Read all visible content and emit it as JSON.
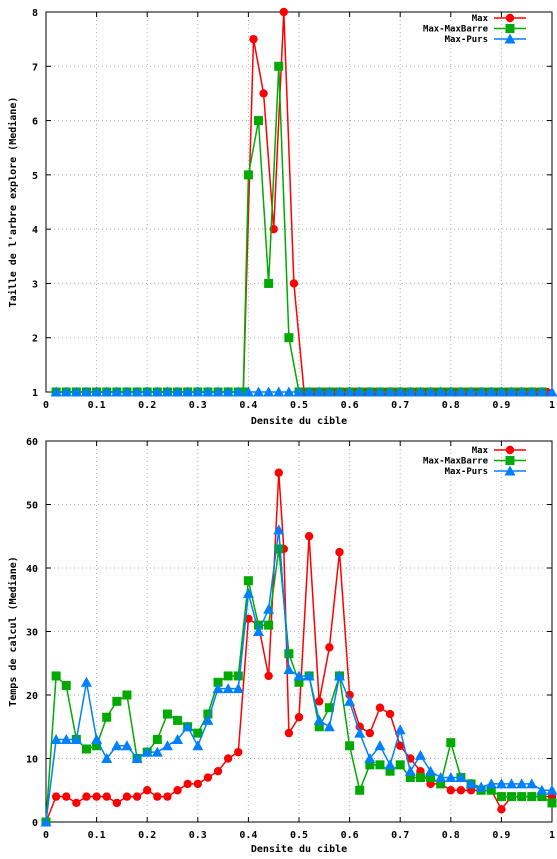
{
  "chart_data": [
    {
      "type": "line",
      "title": "",
      "xlabel": "Densite du cible",
      "ylabel": "Taille de l'arbre explore (Mediane)",
      "xlim": [
        0,
        1
      ],
      "ylim": [
        1,
        8
      ],
      "xticks": [
        "0",
        "0.1",
        "0.2",
        "0.3",
        "0.4",
        "0.5",
        "0.6",
        "0.7",
        "0.8",
        "0.9",
        "1"
      ],
      "yticks": [
        "1",
        "2",
        "3",
        "4",
        "5",
        "6",
        "7",
        "8"
      ],
      "grid": true,
      "legend_position": "top-right",
      "series": [
        {
          "name": "Max",
          "color": "#ff0000",
          "marker": "circle",
          "x": [
            0.02,
            0.04,
            0.06,
            0.08,
            0.1,
            0.12,
            0.14,
            0.16,
            0.18,
            0.2,
            0.22,
            0.24,
            0.26,
            0.28,
            0.3,
            0.32,
            0.34,
            0.36,
            0.38,
            0.39,
            0.41,
            0.43,
            0.45,
            0.47,
            0.49,
            0.51,
            0.53,
            0.55,
            0.57,
            0.59,
            0.61,
            0.63,
            0.65,
            0.67,
            0.69,
            0.71,
            0.73,
            0.75,
            0.77,
            0.79,
            0.81,
            0.83,
            0.85,
            0.87,
            0.89,
            0.91,
            0.93,
            0.95,
            0.97,
            0.99
          ],
          "y": [
            1,
            1,
            1,
            1,
            1,
            1,
            1,
            1,
            1,
            1,
            1,
            1,
            1,
            1,
            1,
            1,
            1,
            1,
            1,
            1,
            7.5,
            6.5,
            4,
            8,
            3,
            1,
            1,
            1,
            1,
            1,
            1,
            1,
            1,
            1,
            1,
            1,
            1,
            1,
            1,
            1,
            1,
            1,
            1,
            1,
            1,
            1,
            1,
            1,
            1,
            1
          ]
        },
        {
          "name": "Max-MaxBarre",
          "color": "#00aa00",
          "marker": "square",
          "x": [
            0.02,
            0.04,
            0.06,
            0.08,
            0.1,
            0.12,
            0.14,
            0.16,
            0.18,
            0.2,
            0.22,
            0.24,
            0.26,
            0.28,
            0.3,
            0.32,
            0.34,
            0.36,
            0.38,
            0.39,
            0.4,
            0.42,
            0.44,
            0.46,
            0.48,
            0.5,
            0.52,
            0.54,
            0.56,
            0.58,
            0.6,
            0.62,
            0.64,
            0.66,
            0.68,
            0.7,
            0.72,
            0.74,
            0.76,
            0.78,
            0.8,
            0.82,
            0.84,
            0.86,
            0.88,
            0.9,
            0.92,
            0.94,
            0.96,
            0.98
          ],
          "y": [
            1,
            1,
            1,
            1,
            1,
            1,
            1,
            1,
            1,
            1,
            1,
            1,
            1,
            1,
            1,
            1,
            1,
            1,
            1,
            1,
            5,
            6,
            3,
            7,
            2,
            1,
            1,
            1,
            1,
            1,
            1,
            1,
            1,
            1,
            1,
            1,
            1,
            1,
            1,
            1,
            1,
            1,
            1,
            1,
            1,
            1,
            1,
            1,
            1,
            1
          ]
        },
        {
          "name": "Max-Purs",
          "color": "#0080ff",
          "marker": "triangle",
          "x": [
            0.02,
            0.04,
            0.06,
            0.08,
            0.1,
            0.12,
            0.14,
            0.16,
            0.18,
            0.2,
            0.22,
            0.24,
            0.26,
            0.28,
            0.3,
            0.32,
            0.34,
            0.36,
            0.38,
            0.4,
            0.42,
            0.44,
            0.46,
            0.48,
            0.5,
            0.52,
            0.54,
            0.56,
            0.58,
            0.6,
            0.62,
            0.64,
            0.66,
            0.68,
            0.7,
            0.72,
            0.74,
            0.76,
            0.78,
            0.8,
            0.82,
            0.84,
            0.86,
            0.88,
            0.9,
            0.92,
            0.94,
            0.96,
            0.98,
            1.0
          ],
          "y": [
            1,
            1,
            1,
            1,
            1,
            1,
            1,
            1,
            1,
            1,
            1,
            1,
            1,
            1,
            1,
            1,
            1,
            1,
            1,
            1,
            1,
            1,
            1,
            1,
            1,
            1,
            1,
            1,
            1,
            1,
            1,
            1,
            1,
            1,
            1,
            1,
            1,
            1,
            1,
            1,
            1,
            1,
            1,
            1,
            1,
            1,
            1,
            1,
            1,
            1
          ]
        }
      ]
    },
    {
      "type": "line",
      "title": "",
      "xlabel": "Densite du cible",
      "ylabel": "Temps de calcul (Mediane)",
      "xlim": [
        0,
        1
      ],
      "ylim": [
        0,
        60
      ],
      "xticks": [
        "0",
        "0.1",
        "0.2",
        "0.3",
        "0.4",
        "0.5",
        "0.6",
        "0.7",
        "0.8",
        "0.9",
        "1"
      ],
      "yticks": [
        "0",
        "10",
        "20",
        "30",
        "40",
        "50",
        "60"
      ],
      "grid": true,
      "legend_position": "top-right",
      "series": [
        {
          "name": "Max",
          "color": "#ff0000",
          "marker": "circle",
          "x": [
            0.0,
            0.02,
            0.04,
            0.06,
            0.08,
            0.1,
            0.12,
            0.14,
            0.16,
            0.18,
            0.2,
            0.22,
            0.24,
            0.26,
            0.28,
            0.3,
            0.32,
            0.34,
            0.36,
            0.38,
            0.4,
            0.42,
            0.44,
            0.46,
            0.47,
            0.48,
            0.5,
            0.52,
            0.54,
            0.56,
            0.58,
            0.6,
            0.62,
            0.64,
            0.66,
            0.68,
            0.7,
            0.72,
            0.74,
            0.76,
            0.78,
            0.8,
            0.82,
            0.84,
            0.86,
            0.88,
            0.9,
            0.92,
            0.94,
            0.96,
            0.98,
            1.0
          ],
          "y": [
            0,
            4,
            4,
            3,
            4,
            4,
            4,
            3,
            4,
            4,
            5,
            4,
            4,
            5,
            6,
            6,
            7,
            8,
            10,
            11,
            32,
            31,
            23,
            55,
            43,
            14,
            16.5,
            45,
            19,
            27.5,
            42.5,
            20,
            15,
            14,
            18,
            17,
            12,
            10,
            8,
            6,
            6,
            5,
            5,
            5,
            5,
            5,
            2,
            4,
            4,
            4,
            4,
            4
          ]
        },
        {
          "name": "Max-MaxBarre",
          "color": "#00aa00",
          "marker": "square",
          "x": [
            0.0,
            0.02,
            0.04,
            0.06,
            0.08,
            0.1,
            0.12,
            0.14,
            0.16,
            0.18,
            0.2,
            0.22,
            0.24,
            0.26,
            0.28,
            0.3,
            0.32,
            0.34,
            0.36,
            0.38,
            0.4,
            0.42,
            0.44,
            0.46,
            0.48,
            0.5,
            0.52,
            0.54,
            0.56,
            0.58,
            0.6,
            0.62,
            0.64,
            0.66,
            0.68,
            0.7,
            0.72,
            0.74,
            0.76,
            0.78,
            0.8,
            0.82,
            0.84,
            0.86,
            0.88,
            0.9,
            0.92,
            0.94,
            0.96,
            0.98,
            1.0
          ],
          "y": [
            0,
            23,
            21.5,
            13,
            11.5,
            12,
            16.5,
            19,
            20,
            10,
            11,
            13,
            17,
            16,
            15,
            14,
            17,
            22,
            23,
            23,
            38,
            31,
            31,
            43,
            26.5,
            22,
            23,
            15,
            18,
            23,
            12,
            5,
            9,
            9,
            8,
            9,
            7,
            7,
            7,
            6,
            12.5,
            7,
            6,
            5,
            5,
            4,
            4,
            4,
            4,
            4,
            3
          ]
        },
        {
          "name": "Max-Purs",
          "color": "#0080ff",
          "marker": "triangle",
          "x": [
            0.0,
            0.02,
            0.04,
            0.06,
            0.08,
            0.1,
            0.12,
            0.14,
            0.16,
            0.18,
            0.2,
            0.22,
            0.24,
            0.26,
            0.28,
            0.3,
            0.32,
            0.34,
            0.36,
            0.38,
            0.4,
            0.42,
            0.44,
            0.46,
            0.48,
            0.5,
            0.52,
            0.54,
            0.56,
            0.58,
            0.6,
            0.62,
            0.64,
            0.66,
            0.68,
            0.7,
            0.72,
            0.74,
            0.76,
            0.78,
            0.8,
            0.82,
            0.84,
            0.86,
            0.88,
            0.9,
            0.92,
            0.94,
            0.96,
            0.98,
            1.0
          ],
          "y": [
            0,
            13,
            13,
            13,
            22,
            13,
            10,
            12,
            12,
            10,
            11,
            11,
            12,
            13,
            15,
            12,
            16,
            21,
            21,
            21,
            36,
            30,
            33.5,
            46,
            24,
            23,
            23,
            16,
            15,
            23,
            19,
            14,
            10,
            12,
            9,
            14.5,
            8,
            10.5,
            8,
            7,
            7,
            7,
            6,
            5.5,
            6,
            6,
            6,
            6,
            6,
            5,
            5
          ]
        }
      ]
    }
  ]
}
